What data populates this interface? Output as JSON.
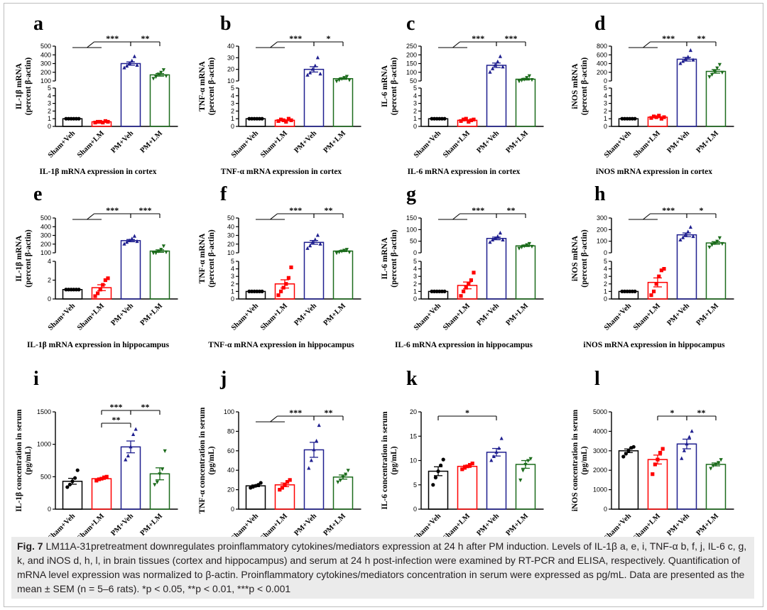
{
  "figure": {
    "caption_label": "Fig. 7",
    "caption_text": "LM11A-31pretreatment downregulates proinflammatory cytokines/mediators expression at 24 h after PM induction. Levels of IL-1β a, e, i, TNF-α b, f, j, IL-6 c, g, k, and iNOS d, h, l, in brain tissues (cortex and hippocampus) and serum at 24 h post-infection were examined by RT-PCR and ELISA, respectively. Quantification of mRNA level expression was normalized to β-actin. Proinflammatory cytokines/mediators concentration in serum were expressed as pg/mL. Data are presented as the mean ± SEM (n = 5–6 rats). *p < 0.05, **p < 0.01, ***p < 0.001"
  },
  "colors": {
    "sham_veh": "#000000",
    "sham_lm": "#ff0000",
    "pm_veh": "#1f1f8f",
    "pm_lm": "#1b6b1b"
  },
  "chart_data": [
    {
      "panel": "a",
      "type": "bar",
      "categories": [
        "Sham+Veh",
        "Sham+LM",
        "PM+Veh",
        "PM+LM"
      ],
      "ylabel": [
        "IL-1β mRNA",
        "(percent β-actin)"
      ],
      "title": "IL-1β mRNA expression in cortex",
      "values": [
        1,
        0.6,
        300,
        170
      ],
      "axis_break": {
        "lower_ylim": [
          0,
          5
        ],
        "lower_ticks": [
          0,
          1,
          2,
          3,
          4,
          5
        ],
        "upper_ylim": [
          100,
          500
        ],
        "upper_ticks": [
          100,
          200,
          300,
          400,
          500
        ]
      },
      "points": [
        [
          1,
          1,
          1,
          1,
          1,
          1
        ],
        [
          0.5,
          0.6,
          0.6,
          0.5,
          0.7,
          0.6
        ],
        [
          250,
          270,
          300,
          330,
          380,
          280
        ],
        [
          130,
          150,
          180,
          200,
          230,
          160
        ]
      ],
      "significance": [
        {
          "from": [
            0,
            1
          ],
          "to": 2,
          "label": "***"
        },
        {
          "from": 2,
          "to": 3,
          "label": "**"
        }
      ]
    },
    {
      "panel": "b",
      "type": "bar",
      "categories": [
        "Sham+Veh",
        "Sham+LM",
        "PM+Veh",
        "PM+LM"
      ],
      "ylabel": [
        "TNF-α mRNA",
        "(percent β-actin)"
      ],
      "title": "TNF-α mRNA expression in cortex",
      "values": [
        1,
        0.8,
        20,
        12
      ],
      "axis_break": {
        "lower_ylim": [
          0,
          5
        ],
        "lower_ticks": [
          0,
          1,
          2,
          3,
          4,
          5
        ],
        "upper_ylim": [
          10,
          40
        ],
        "upper_ticks": [
          10,
          20,
          30,
          40
        ]
      },
      "points": [
        [
          1,
          1,
          1,
          1,
          1,
          1
        ],
        [
          0.7,
          0.9,
          0.8,
          0.6,
          1,
          0.8
        ],
        [
          15,
          17,
          20,
          23,
          30,
          16
        ],
        [
          10,
          11,
          12,
          13,
          14,
          11
        ]
      ],
      "significance": [
        {
          "from": [
            0,
            1
          ],
          "to": 2,
          "label": "***"
        },
        {
          "from": 2,
          "to": 3,
          "label": "*"
        }
      ]
    },
    {
      "panel": "c",
      "type": "bar",
      "categories": [
        "Sham+Veh",
        "Sham+LM",
        "PM+Veh",
        "PM+LM"
      ],
      "ylabel": [
        "IL-6 mRNA",
        "(percent β-actin)"
      ],
      "title": "IL-6 mRNA expression in cortex",
      "values": [
        1,
        0.8,
        140,
        60
      ],
      "axis_break": {
        "lower_ylim": [
          0,
          5
        ],
        "lower_ticks": [
          0,
          1,
          2,
          3,
          4,
          5
        ],
        "upper_ylim": [
          50,
          250
        ],
        "upper_ticks": [
          50,
          100,
          150,
          200,
          250
        ]
      },
      "points": [
        [
          1,
          1,
          1,
          1,
          1,
          1
        ],
        [
          0.7,
          0.9,
          1,
          0.6,
          0.8,
          0.9
        ],
        [
          100,
          120,
          140,
          160,
          190,
          130
        ],
        [
          50,
          55,
          60,
          70,
          80,
          58
        ]
      ],
      "significance": [
        {
          "from": [
            0,
            1
          ],
          "to": 2,
          "label": "***"
        },
        {
          "from": 2,
          "to": 3,
          "label": "***"
        }
      ]
    },
    {
      "panel": "d",
      "type": "bar",
      "categories": [
        "Sham+Veh",
        "Sham+LM",
        "PM+Veh",
        "PM+LM"
      ],
      "ylabel": [
        "iNOS mRNA",
        "(percent β-actin)"
      ],
      "title": "iNOS mRNA expression in cortex",
      "values": [
        1,
        1.2,
        500,
        220
      ],
      "axis_break": {
        "lower_ylim": [
          0,
          5
        ],
        "lower_ticks": [
          0,
          1,
          2,
          3,
          4,
          5
        ],
        "upper_ylim": [
          0,
          800
        ],
        "upper_ticks": [
          0,
          200,
          400,
          600,
          800
        ]
      },
      "points": [
        [
          1,
          1,
          1,
          1,
          1,
          1
        ],
        [
          1.1,
          1.3,
          1.2,
          1.4,
          1,
          1.2
        ],
        [
          400,
          450,
          500,
          550,
          700,
          480
        ],
        [
          100,
          150,
          220,
          300,
          380,
          200
        ]
      ],
      "significance": [
        {
          "from": [
            0,
            1
          ],
          "to": 2,
          "label": "***"
        },
        {
          "from": 2,
          "to": 3,
          "label": "**"
        }
      ]
    },
    {
      "panel": "e",
      "type": "bar",
      "categories": [
        "Sham+Veh",
        "Sham+LM",
        "PM+Veh",
        "PM+LM"
      ],
      "ylabel": [
        "IL-1β mRNA",
        "(percent β-actin)"
      ],
      "title": "IL-1β mRNA expression in hippocampus",
      "values": [
        1,
        1.2,
        240,
        120
      ],
      "axis_break": {
        "lower_ylim": [
          0,
          4
        ],
        "lower_ticks": [
          0,
          2,
          4
        ],
        "upper_ylim": [
          100,
          500
        ],
        "upper_ticks": [
          100,
          200,
          300,
          400,
          500
        ]
      },
      "points": [
        [
          1,
          1,
          1,
          1,
          1,
          1
        ],
        [
          0.3,
          0.6,
          1,
          1.5,
          2,
          2.2
        ],
        [
          200,
          220,
          240,
          260,
          290,
          230
        ],
        [
          80,
          100,
          120,
          140,
          180,
          110
        ]
      ],
      "significance": [
        {
          "from": [
            0,
            1
          ],
          "to": 2,
          "label": "***"
        },
        {
          "from": 2,
          "to": 3,
          "label": "***"
        }
      ]
    },
    {
      "panel": "f",
      "type": "bar",
      "categories": [
        "Sham+Veh",
        "Sham+LM",
        "PM+Veh",
        "PM+LM"
      ],
      "ylabel": [
        "TNF-α mRNA",
        "(percent β-actin)"
      ],
      "title": "TNF-α mRNA expression in hippocampus",
      "values": [
        1,
        2,
        22,
        12
      ],
      "axis_break": {
        "lower_ylim": [
          0,
          5
        ],
        "lower_ticks": [
          0,
          1,
          2,
          3,
          4,
          5
        ],
        "upper_ylim": [
          10,
          50
        ],
        "upper_ticks": [
          10,
          20,
          30,
          40,
          50
        ]
      },
      "points": [
        [
          1,
          1,
          1,
          1,
          1,
          1
        ],
        [
          0.5,
          1,
          1.5,
          2,
          2.8,
          4.2
        ],
        [
          15,
          18,
          22,
          25,
          30,
          20
        ],
        [
          10,
          11,
          12,
          13,
          14,
          11
        ]
      ],
      "significance": [
        {
          "from": [
            0,
            1
          ],
          "to": 2,
          "label": "***"
        },
        {
          "from": 2,
          "to": 3,
          "label": "**"
        }
      ]
    },
    {
      "panel": "g",
      "type": "bar",
      "categories": [
        "Sham+Veh",
        "Sham+LM",
        "PM+Veh",
        "PM+LM"
      ],
      "ylabel": [
        "IL-6 mRNA",
        "(percent β-actin)"
      ],
      "title": "IL-6 mRNA expression in hippocampus",
      "values": [
        1,
        1.8,
        62,
        30
      ],
      "axis_break": {
        "lower_ylim": [
          0,
          5
        ],
        "lower_ticks": [
          0,
          1,
          2,
          3,
          4,
          5
        ],
        "upper_ylim": [
          0,
          150
        ],
        "upper_ticks": [
          0,
          50,
          100,
          150
        ]
      },
      "points": [
        [
          1,
          1,
          1,
          1,
          1,
          1
        ],
        [
          0.4,
          1,
          1.5,
          2,
          2.5,
          3.5
        ],
        [
          45,
          55,
          62,
          70,
          85,
          55
        ],
        [
          20,
          25,
          30,
          35,
          40,
          28
        ]
      ],
      "significance": [
        {
          "from": [
            0,
            1
          ],
          "to": 2,
          "label": "***"
        },
        {
          "from": 2,
          "to": 3,
          "label": "**"
        }
      ]
    },
    {
      "panel": "h",
      "type": "bar",
      "categories": [
        "Sham+Veh",
        "Sham+LM",
        "PM+Veh",
        "PM+LM"
      ],
      "ylabel": [
        "iNOS mRNA",
        "(percent β-actin)"
      ],
      "title": "iNOS mRNA expression in hippocampus",
      "values": [
        1,
        2.2,
        155,
        85
      ],
      "axis_break": {
        "lower_ylim": [
          0,
          5
        ],
        "lower_ticks": [
          0,
          1,
          2,
          3,
          4,
          5
        ],
        "upper_ylim": [
          0,
          300
        ],
        "upper_ticks": [
          0,
          100,
          200,
          300
        ]
      },
      "points": [
        [
          1,
          1,
          1,
          1,
          1,
          1
        ],
        [
          0.5,
          1,
          2,
          3,
          3.8,
          4
        ],
        [
          110,
          130,
          155,
          180,
          220,
          140
        ],
        [
          50,
          70,
          85,
          100,
          130,
          80
        ]
      ],
      "significance": [
        {
          "from": [
            0,
            1
          ],
          "to": 2,
          "label": "***"
        },
        {
          "from": 2,
          "to": 3,
          "label": "*"
        }
      ]
    },
    {
      "panel": "i",
      "type": "bar",
      "categories": [
        "Sham+Veh",
        "Sham+LM",
        "PM+Veh",
        "PM+LM"
      ],
      "ylabel": [
        "IL-1β concentration in serum",
        "(pg/mL)"
      ],
      "ylim": [
        0,
        1500
      ],
      "yticks": [
        0,
        500,
        1000,
        1500
      ],
      "values": [
        430,
        470,
        960,
        545
      ],
      "points": [
        [
          340,
          380,
          430,
          480,
          600
        ],
        [
          440,
          460,
          470,
          490,
          500
        ],
        [
          760,
          820,
          960,
          1150,
          1230
        ],
        [
          380,
          420,
          545,
          620,
          900
        ]
      ],
      "significance": [
        {
          "from": 1,
          "to": 2,
          "label": "***",
          "tier": 2
        },
        {
          "from": 2,
          "to": 3,
          "label": "**",
          "tier": 2
        },
        {
          "from": 1,
          "to": 2,
          "label": "**",
          "tier": 1
        }
      ]
    },
    {
      "panel": "j",
      "type": "bar",
      "categories": [
        "Sham+Veh",
        "Sham+LM",
        "PM+Veh",
        "PM+LM"
      ],
      "ylabel": [
        "TNF-α concentration in serum",
        "(pg/mL)"
      ],
      "ylim": [
        0,
        100
      ],
      "yticks": [
        0,
        20,
        40,
        60,
        80,
        100
      ],
      "values": [
        24,
        25,
        61,
        33
      ],
      "points": [
        [
          22,
          23,
          24,
          25,
          27
        ],
        [
          20,
          22,
          25,
          28,
          30
        ],
        [
          42,
          50,
          61,
          70,
          86
        ],
        [
          28,
          30,
          33,
          36,
          40
        ]
      ],
      "significance": [
        {
          "from": [
            0,
            1
          ],
          "to": 2,
          "label": "***"
        },
        {
          "from": 2,
          "to": 3,
          "label": "**"
        }
      ]
    },
    {
      "panel": "k",
      "type": "bar",
      "categories": [
        "Sham+Veh",
        "Sham+LM",
        "PM+Veh",
        "PM+LM"
      ],
      "ylabel": [
        "IL-6 concentration in serum",
        "(pg/mL)"
      ],
      "ylim": [
        0,
        20
      ],
      "yticks": [
        0,
        5,
        10,
        15,
        20
      ],
      "values": [
        7.8,
        8.8,
        11.7,
        9.2
      ],
      "points": [
        [
          5,
          6.5,
          7.8,
          9,
          10.2
        ],
        [
          8.2,
          8.5,
          8.8,
          9.1,
          9.4
        ],
        [
          10,
          10.8,
          11.7,
          12.5,
          14.5
        ],
        [
          6,
          8,
          9.2,
          10,
          10.4
        ]
      ],
      "significance": [
        {
          "from": 0,
          "to": 2,
          "label": "*"
        }
      ]
    },
    {
      "panel": "l",
      "type": "bar",
      "categories": [
        "Sham+Veh",
        "Sham+LM",
        "PM+Veh",
        "PM+LM"
      ],
      "ylabel": [
        "iNOS concentration in serum",
        "(pg/mL)"
      ],
      "ylim": [
        0,
        5000
      ],
      "yticks": [
        0,
        1000,
        2000,
        3000,
        4000,
        5000
      ],
      "values": [
        3000,
        2550,
        3350,
        2300
      ],
      "points": [
        [
          2700,
          2850,
          3000,
          3150,
          3200
        ],
        [
          1800,
          2300,
          2550,
          2900,
          3100
        ],
        [
          2600,
          3000,
          3350,
          3700,
          4000
        ],
        [
          2100,
          2250,
          2300,
          2400,
          2550
        ]
      ],
      "significance": [
        {
          "from": 1,
          "to": 2,
          "label": "*"
        },
        {
          "from": 2,
          "to": 3,
          "label": "**"
        }
      ]
    }
  ]
}
